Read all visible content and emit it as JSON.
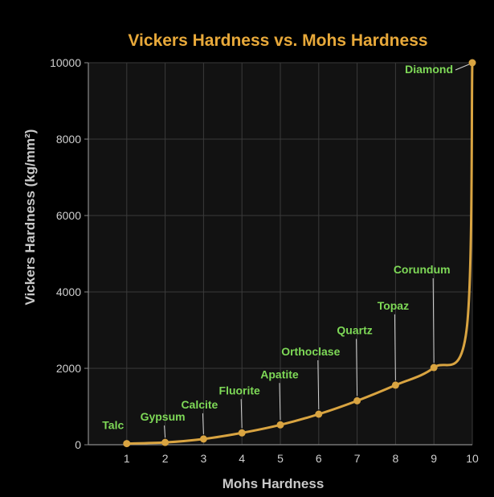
{
  "colors": {
    "background": "#000000",
    "plot_background": "#121212",
    "grid": "#3a3a3a",
    "line": "#d9a441",
    "title": "#e8a93a",
    "label": "#7ed957",
    "axis_text": "#c9c9c9"
  },
  "chart_data": {
    "type": "line",
    "title": "Vickers Hardness vs. Mohs Hardness",
    "xlabel": "Mohs Hardness",
    "ylabel": "Vickers Hardness (kg/mm²)",
    "xlim": [
      0,
      10
    ],
    "ylim": [
      0,
      10000
    ],
    "grid": true,
    "x_ticks": [
      1,
      2,
      3,
      4,
      5,
      6,
      7,
      8,
      9,
      10
    ],
    "y_ticks": [
      0,
      2000,
      4000,
      6000,
      8000,
      10000
    ],
    "x": [
      1,
      2,
      3,
      4,
      5,
      6,
      7,
      8,
      9,
      10
    ],
    "y": [
      30,
      60,
      150,
      310,
      520,
      800,
      1150,
      1560,
      2020,
      10000
    ],
    "point_labels": [
      "Talc",
      "Gypsum",
      "Calcite",
      "Fluorite",
      "Apatite",
      "Orthoclase",
      "Quartz",
      "Topaz",
      "Corundum",
      "Diamond"
    ]
  }
}
